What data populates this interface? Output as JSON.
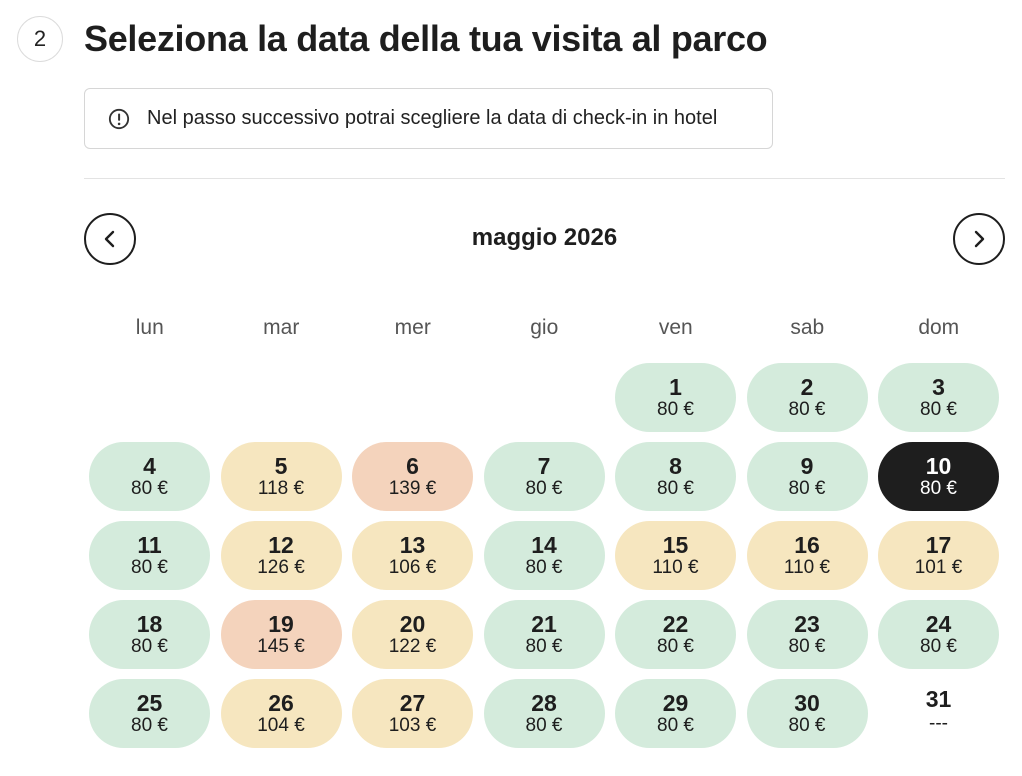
{
  "step": {
    "number": "2",
    "title": "Seleziona la data della tua visita al parco"
  },
  "notice": {
    "icon": "exclamation-circle-icon",
    "text": "Nel passo successivo potrai scegliere la data di check-in in hotel"
  },
  "calendar": {
    "month_label": "maggio 2026",
    "prev_icon": "chevron-left-icon",
    "next_icon": "chevron-right-icon",
    "weekdays": [
      "lun",
      "mar",
      "mer",
      "gio",
      "ven",
      "sab",
      "dom"
    ],
    "leading_empty": 4,
    "colors": {
      "green": "#d4ebdc",
      "yellow": "#f6e6bf",
      "orange": "#f4d3bc",
      "selected": "#1e1e1e"
    },
    "days": [
      {
        "day": "1",
        "price": "80 €",
        "tier": "green"
      },
      {
        "day": "2",
        "price": "80 €",
        "tier": "green"
      },
      {
        "day": "3",
        "price": "80 €",
        "tier": "green"
      },
      {
        "day": "4",
        "price": "80 €",
        "tier": "green"
      },
      {
        "day": "5",
        "price": "118 €",
        "tier": "yellow"
      },
      {
        "day": "6",
        "price": "139 €",
        "tier": "orange"
      },
      {
        "day": "7",
        "price": "80 €",
        "tier": "green"
      },
      {
        "day": "8",
        "price": "80 €",
        "tier": "green"
      },
      {
        "day": "9",
        "price": "80 €",
        "tier": "green"
      },
      {
        "day": "10",
        "price": "80 €",
        "tier": "selected"
      },
      {
        "day": "11",
        "price": "80 €",
        "tier": "green"
      },
      {
        "day": "12",
        "price": "126 €",
        "tier": "yellow"
      },
      {
        "day": "13",
        "price": "106 €",
        "tier": "yellow"
      },
      {
        "day": "14",
        "price": "80 €",
        "tier": "green"
      },
      {
        "day": "15",
        "price": "110 €",
        "tier": "yellow"
      },
      {
        "day": "16",
        "price": "110 €",
        "tier": "yellow"
      },
      {
        "day": "17",
        "price": "101 €",
        "tier": "yellow"
      },
      {
        "day": "18",
        "price": "80 €",
        "tier": "green"
      },
      {
        "day": "19",
        "price": "145 €",
        "tier": "orange"
      },
      {
        "day": "20",
        "price": "122 €",
        "tier": "yellow"
      },
      {
        "day": "21",
        "price": "80 €",
        "tier": "green"
      },
      {
        "day": "22",
        "price": "80 €",
        "tier": "green"
      },
      {
        "day": "23",
        "price": "80 €",
        "tier": "green"
      },
      {
        "day": "24",
        "price": "80 €",
        "tier": "green"
      },
      {
        "day": "25",
        "price": "80 €",
        "tier": "green"
      },
      {
        "day": "26",
        "price": "104 €",
        "tier": "yellow"
      },
      {
        "day": "27",
        "price": "103 €",
        "tier": "yellow"
      },
      {
        "day": "28",
        "price": "80 €",
        "tier": "green"
      },
      {
        "day": "29",
        "price": "80 €",
        "tier": "green"
      },
      {
        "day": "30",
        "price": "80 €",
        "tier": "green"
      },
      {
        "day": "31",
        "price": "---",
        "tier": "unavailable"
      }
    ]
  }
}
